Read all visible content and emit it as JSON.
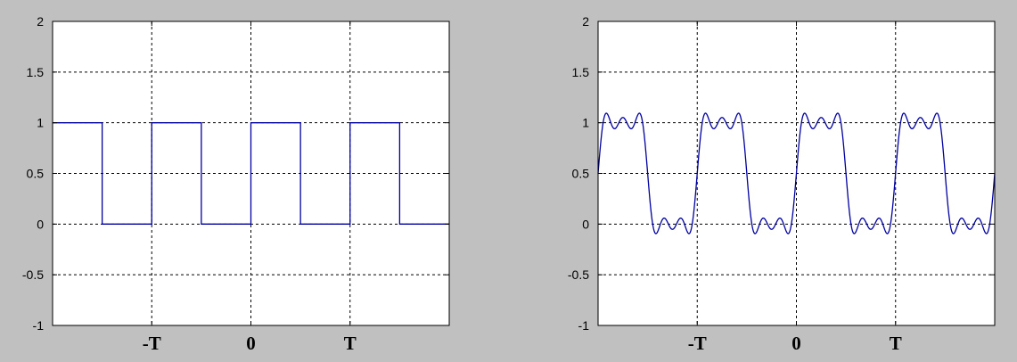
{
  "figure": {
    "background": "#c0c0c0"
  },
  "chart_data": [
    {
      "type": "line",
      "title": "",
      "xlabel": "",
      "ylabel": "",
      "xlim": [
        -2,
        2
      ],
      "ylim": [
        -1,
        2
      ],
      "grid": true,
      "line_color": "#0000a0",
      "xticks": [
        {
          "x": -1,
          "label": "-T"
        },
        {
          "x": 0,
          "label": "0"
        },
        {
          "x": 1,
          "label": "T"
        }
      ],
      "yticks": [
        "-1",
        "-0.5",
        "0",
        "0.5",
        "1",
        "1.5",
        "2"
      ],
      "series": [
        {
          "kind": "square",
          "x": [
            -2,
            -1.5,
            -1.5,
            -1,
            -1,
            -0.5,
            -0.5,
            0,
            0,
            0.5,
            0.5,
            1,
            1,
            1.5,
            1.5,
            2
          ],
          "y": [
            1,
            1,
            0,
            0,
            1,
            1,
            0,
            0,
            1,
            1,
            0,
            0,
            1,
            1,
            0,
            0
          ]
        }
      ]
    },
    {
      "type": "line",
      "title": "",
      "xlabel": "",
      "ylabel": "",
      "xlim": [
        -2,
        2
      ],
      "ylim": [
        -1,
        2
      ],
      "grid": true,
      "line_color": "#0000a0",
      "xticks": [
        {
          "x": -1,
          "label": "-T"
        },
        {
          "x": 0,
          "label": "0"
        },
        {
          "x": 1,
          "label": "T"
        }
      ],
      "yticks": [
        "-1",
        "-0.5",
        "0",
        "0.5",
        "1",
        "1.5",
        "2"
      ],
      "series": [
        {
          "kind": "fourier-partial-sum",
          "expression": "0.5 + (2/pi) * sum over odd k<=5 of sin(2*pi*k*(x+2)) / k",
          "period": 1,
          "harmonics": [
            1,
            3,
            5
          ],
          "x_range": [
            -2,
            2
          ],
          "y_approx_range": [
            -0.09,
            1.09
          ]
        }
      ]
    }
  ]
}
